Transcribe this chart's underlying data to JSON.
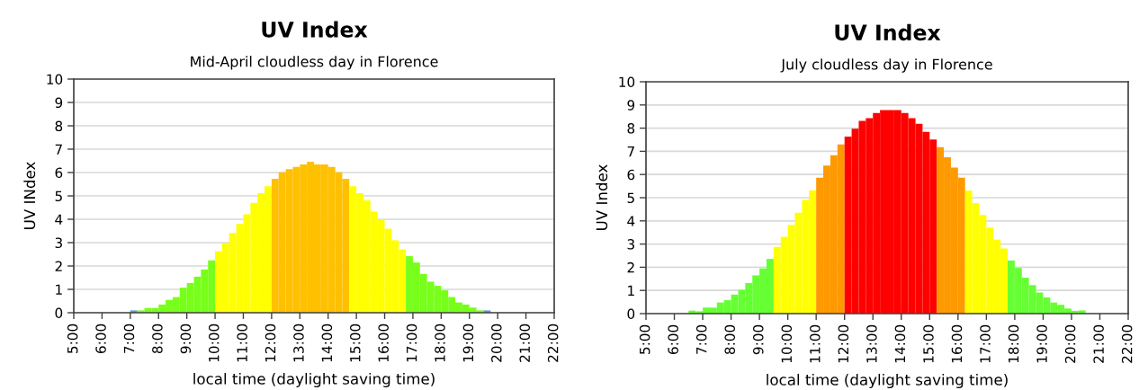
{
  "chart_data": [
    {
      "type": "bar",
      "title": "UV Index",
      "subtitle": "Mid-April cloudless day in Florence",
      "xlabel": "local time (daylight saving time)",
      "ylabel": "UV INdex",
      "x": [
        7.125,
        7.375,
        7.625,
        7.875,
        8.125,
        8.375,
        8.625,
        8.875,
        9.125,
        9.375,
        9.625,
        9.875,
        10.125,
        10.375,
        10.625,
        10.875,
        11.125,
        11.375,
        11.625,
        11.875,
        12.125,
        12.375,
        12.625,
        12.875,
        13.125,
        13.375,
        13.625,
        13.875,
        14.125,
        14.375,
        14.625,
        14.875,
        15.125,
        15.375,
        15.625,
        15.875,
        16.125,
        16.375,
        16.625,
        16.875,
        17.125,
        17.375,
        17.625,
        17.875,
        18.125,
        18.375,
        18.625,
        18.875,
        19.125,
        19.375,
        19.625
      ],
      "values": [
        0.1,
        0.1,
        0.2,
        0.2,
        0.35,
        0.55,
        0.67,
        1.07,
        1.27,
        1.54,
        1.85,
        2.24,
        2.63,
        2.98,
        3.41,
        3.8,
        4.21,
        4.7,
        5.12,
        5.41,
        5.73,
        6.01,
        6.14,
        6.24,
        6.35,
        6.46,
        6.35,
        6.35,
        6.24,
        6.01,
        5.73,
        5.41,
        5.12,
        4.81,
        4.33,
        4.0,
        3.6,
        3.1,
        2.71,
        2.42,
        2.15,
        1.66,
        1.33,
        1.15,
        0.96,
        0.67,
        0.44,
        0.35,
        0.22,
        0.1,
        0.1
      ],
      "colors": [
        "#5b9bd5",
        "#77ff1a",
        "#77ff1a",
        "#77ff1a",
        "#77ff1a",
        "#77ff1a",
        "#77ff1a",
        "#77ff1a",
        "#77ff1a",
        "#77ff1a",
        "#77ff1a",
        "#77ff1a",
        "#ffff00",
        "#ffff00",
        "#ffff00",
        "#ffff00",
        "#ffff00",
        "#ffff00",
        "#ffff00",
        "#ffff00",
        "#ffc000",
        "#ffc000",
        "#ffc000",
        "#ffc000",
        "#ffc000",
        "#ffc000",
        "#ffc000",
        "#ffc000",
        "#ffc000",
        "#ffc000",
        "#ffc000",
        "#ffff00",
        "#ffff00",
        "#ffff00",
        "#ffff00",
        "#ffff00",
        "#ffff00",
        "#ffff00",
        "#ffff00",
        "#77ff1a",
        "#77ff1a",
        "#77ff1a",
        "#77ff1a",
        "#77ff1a",
        "#77ff1a",
        "#77ff1a",
        "#77ff1a",
        "#77ff1a",
        "#77ff1a",
        "#77ff1a",
        "#5b9bd5"
      ],
      "xlim": [
        5,
        22
      ],
      "xticks": [
        {
          "value": 5,
          "label": "5:00"
        },
        {
          "value": 6,
          "label": "6:00"
        },
        {
          "value": 7,
          "label": "7:00"
        },
        {
          "value": 8,
          "label": "8:00"
        },
        {
          "value": 9,
          "label": "9:00"
        },
        {
          "value": 10,
          "label": "10:00"
        },
        {
          "value": 11,
          "label": "11:00"
        },
        {
          "value": 12,
          "label": "12:00"
        },
        {
          "value": 13,
          "label": "13:00"
        },
        {
          "value": 14,
          "label": "14:00"
        },
        {
          "value": 15,
          "label": "15:00"
        },
        {
          "value": 16,
          "label": "16:00"
        },
        {
          "value": 17,
          "label": "17:00"
        },
        {
          "value": 18,
          "label": "18:00"
        },
        {
          "value": 19,
          "label": "19:00"
        },
        {
          "value": 20,
          "label": "20:00"
        },
        {
          "value": 21,
          "label": "21:00"
        },
        {
          "value": 22,
          "label": "22:00"
        }
      ],
      "ylim": [
        0,
        10
      ],
      "yticks": [
        0,
        1,
        2,
        3,
        4,
        5,
        6,
        7,
        8,
        9,
        10
      ],
      "grid": "y"
    },
    {
      "type": "bar",
      "title": "UV Index",
      "subtitle": "July cloudless day in Florence",
      "xlabel": "local time (daylight saving time)",
      "ylabel": "UV Index",
      "x": [
        6.625,
        6.875,
        7.125,
        7.375,
        7.625,
        7.875,
        8.125,
        8.375,
        8.625,
        8.875,
        9.125,
        9.375,
        9.625,
        9.875,
        10.125,
        10.375,
        10.625,
        10.875,
        11.125,
        11.375,
        11.625,
        11.875,
        12.125,
        12.375,
        12.625,
        12.875,
        13.125,
        13.375,
        13.625,
        13.875,
        14.125,
        14.375,
        14.625,
        14.875,
        15.125,
        15.375,
        15.625,
        15.875,
        16.125,
        16.375,
        16.625,
        16.875,
        17.125,
        17.375,
        17.625,
        17.875,
        18.125,
        18.375,
        18.625,
        18.875,
        19.125,
        19.375,
        19.625,
        19.875,
        20.125,
        20.375
      ],
      "values": [
        0.13,
        0.1,
        0.26,
        0.26,
        0.48,
        0.58,
        0.82,
        1.03,
        1.32,
        1.65,
        1.95,
        2.36,
        2.88,
        3.31,
        3.83,
        4.35,
        4.9,
        5.32,
        5.86,
        6.39,
        6.83,
        7.3,
        7.64,
        7.97,
        8.31,
        8.43,
        8.65,
        8.78,
        8.78,
        8.78,
        8.65,
        8.43,
        8.19,
        7.84,
        7.51,
        7.18,
        6.74,
        6.3,
        5.86,
        5.31,
        4.77,
        4.25,
        3.71,
        3.19,
        2.81,
        2.29,
        1.97,
        1.55,
        1.23,
        0.91,
        0.7,
        0.48,
        0.38,
        0.22,
        0.12,
        0.14
      ],
      "colors": [
        "#66ff33",
        "#66ff33",
        "#66ff33",
        "#66ff33",
        "#66ff33",
        "#66ff33",
        "#66ff33",
        "#66ff33",
        "#66ff33",
        "#66ff33",
        "#66ff33",
        "#66ff33",
        "#ffff00",
        "#ffff00",
        "#ffff00",
        "#ffff00",
        "#ffff00",
        "#ffff00",
        "#ff9900",
        "#ff9900",
        "#ff9900",
        "#ff9900",
        "#ff0000",
        "#ff0000",
        "#ff0000",
        "#ff0000",
        "#ff0000",
        "#ff0000",
        "#ff0000",
        "#ff0000",
        "#ff0000",
        "#ff0000",
        "#ff0000",
        "#ff0000",
        "#ff0000",
        "#ff9900",
        "#ff9900",
        "#ff9900",
        "#ff9900",
        "#ffff00",
        "#ffff00",
        "#ffff00",
        "#ffff00",
        "#ffff00",
        "#ffff00",
        "#66ff33",
        "#66ff33",
        "#66ff33",
        "#66ff33",
        "#66ff33",
        "#66ff33",
        "#66ff33",
        "#66ff33",
        "#66ff33",
        "#66ff33",
        "#66ff33"
      ],
      "xlim": [
        5,
        22
      ],
      "xticks": [
        {
          "value": 5,
          "label": "5:00"
        },
        {
          "value": 6,
          "label": "6:00"
        },
        {
          "value": 7,
          "label": "7:00"
        },
        {
          "value": 8,
          "label": "8:00"
        },
        {
          "value": 9,
          "label": "9:00"
        },
        {
          "value": 10,
          "label": "10:00"
        },
        {
          "value": 11,
          "label": "11:00"
        },
        {
          "value": 12,
          "label": "12:00"
        },
        {
          "value": 13,
          "label": "13:00"
        },
        {
          "value": 14,
          "label": "14:00"
        },
        {
          "value": 15,
          "label": "15:00"
        },
        {
          "value": 16,
          "label": "16:00"
        },
        {
          "value": 17,
          "label": "17:00"
        },
        {
          "value": 18,
          "label": "18:00"
        },
        {
          "value": 19,
          "label": "19:00"
        },
        {
          "value": 20,
          "label": "20:00"
        },
        {
          "value": 21,
          "label": "21:00"
        },
        {
          "value": 22,
          "label": "22:00"
        }
      ],
      "ylim": [
        0,
        10
      ],
      "yticks": [
        0,
        1,
        2,
        3,
        4,
        5,
        6,
        7,
        8,
        9,
        10
      ],
      "grid": "y"
    }
  ]
}
